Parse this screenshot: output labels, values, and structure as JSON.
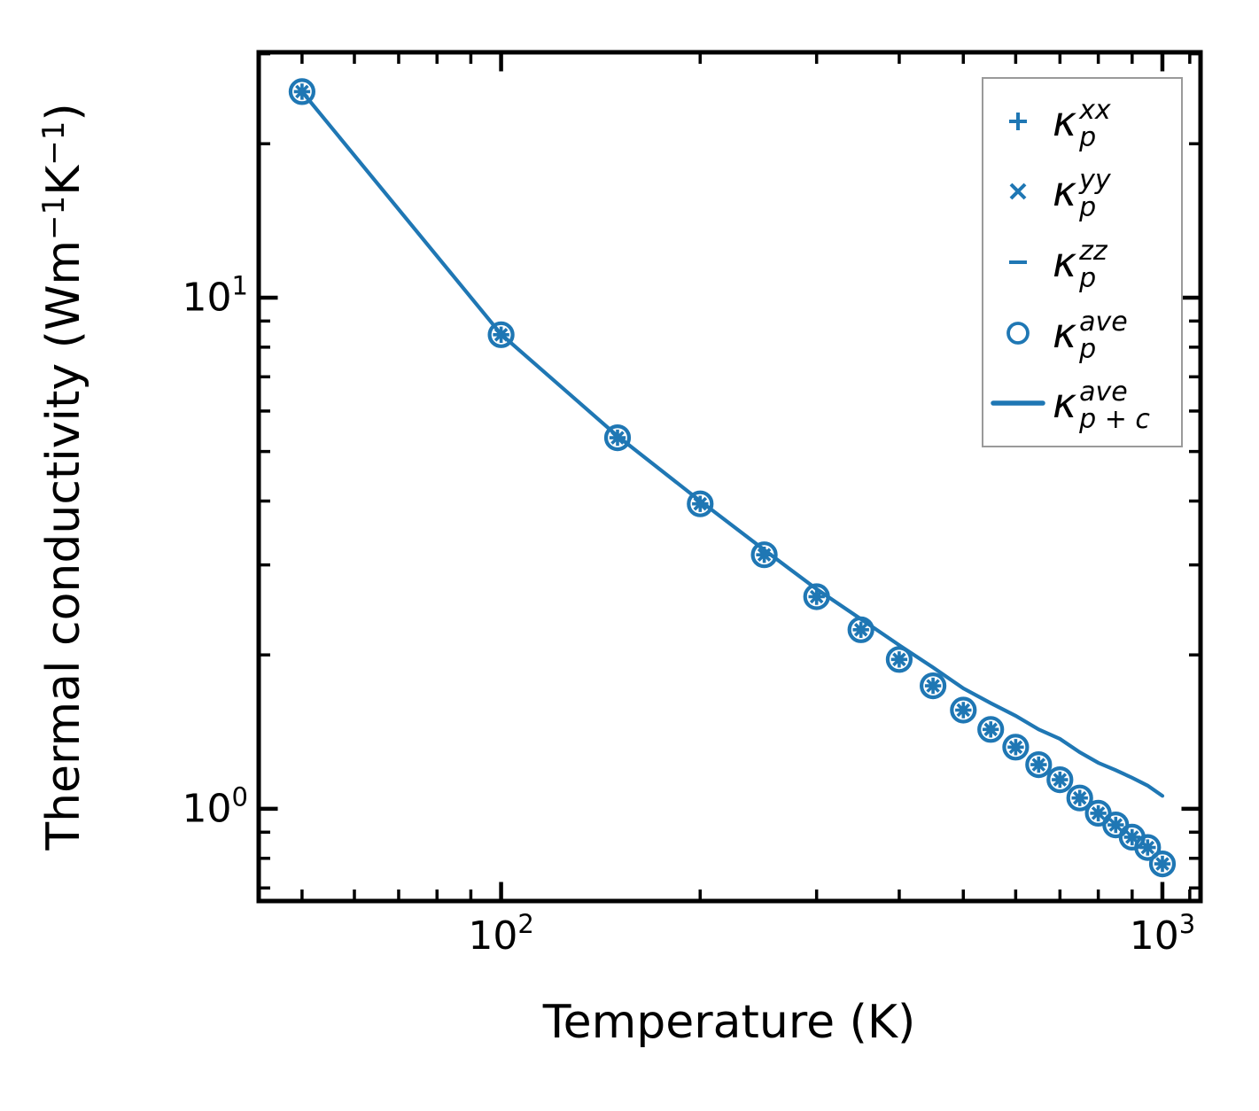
{
  "figure": {
    "background": "#ffffff",
    "accent_color": "#1f77b4",
    "axes_color": "#000000",
    "legend_border_color": "#9a9a9a"
  },
  "chart_data": {
    "type": "line",
    "x_scale": "log",
    "y_scale": "log",
    "title": "",
    "xlabel": "Temperature (K)",
    "ylabel": "Thermal conductivity (Wm−1K−1)",
    "ylabel_parts": [
      [
        "text",
        "Thermal conductivity (Wm"
      ],
      [
        "sup",
        "−1"
      ],
      [
        "text",
        "K"
      ],
      [
        "sup",
        "−1"
      ],
      [
        "text",
        ")"
      ]
    ],
    "xlim": [
      43,
      1142
    ],
    "ylim": [
      0.66,
      30.2
    ],
    "grid": false,
    "legend_position": "upper right",
    "x_major_ticks": [
      100,
      1000
    ],
    "x_minor_ticks": [
      50,
      60,
      70,
      80,
      90,
      200,
      300,
      400,
      500,
      600,
      700,
      800,
      900,
      1100
    ],
    "y_major_ticks": [
      1,
      10
    ],
    "y_minor_ticks": [
      0.7,
      0.8,
      0.9,
      2,
      3,
      4,
      5,
      6,
      7,
      8,
      9,
      20,
      30
    ],
    "x_tick_labels": [
      {
        "base": "10",
        "exp": "2",
        "value": 100
      },
      {
        "base": "10",
        "exp": "3",
        "value": 1000
      }
    ],
    "y_tick_labels": [
      {
        "base": "10",
        "exp": "0",
        "value": 1
      },
      {
        "base": "10",
        "exp": "1",
        "value": 10
      }
    ],
    "temperatures": [
      50,
      100,
      150,
      200,
      250,
      300,
      350,
      400,
      450,
      500,
      550,
      600,
      650,
      700,
      750,
      800,
      850,
      900,
      950,
      1000
    ],
    "series": [
      {
        "name": "κ_p^xx",
        "marker": "plus",
        "type": "scatter",
        "values": [
          25.3,
          8.46,
          5.32,
          3.95,
          3.14,
          2.6,
          2.24,
          1.96,
          1.74,
          1.56,
          1.43,
          1.32,
          1.22,
          1.14,
          1.05,
          0.98,
          0.93,
          0.88,
          0.84,
          0.78
        ]
      },
      {
        "name": "κ_p^yy",
        "marker": "cross",
        "type": "scatter",
        "values": [
          25.3,
          8.46,
          5.32,
          3.95,
          3.14,
          2.6,
          2.24,
          1.96,
          1.74,
          1.56,
          1.43,
          1.32,
          1.22,
          1.14,
          1.05,
          0.98,
          0.93,
          0.88,
          0.84,
          0.78
        ]
      },
      {
        "name": "κ_p^zz",
        "marker": "dash",
        "type": "scatter",
        "values": [
          25.3,
          8.46,
          5.32,
          3.95,
          3.14,
          2.6,
          2.24,
          1.96,
          1.74,
          1.56,
          1.43,
          1.32,
          1.22,
          1.14,
          1.05,
          0.98,
          0.93,
          0.88,
          0.84,
          0.78
        ]
      },
      {
        "name": "κ_p^ave",
        "marker": "circle",
        "type": "scatter",
        "values": [
          25.3,
          8.46,
          5.32,
          3.95,
          3.14,
          2.6,
          2.24,
          1.96,
          1.74,
          1.56,
          1.43,
          1.32,
          1.22,
          1.14,
          1.05,
          0.98,
          0.93,
          0.88,
          0.84,
          0.78
        ]
      },
      {
        "name": "κ_p+c^ave",
        "marker": "line",
        "type": "line",
        "values": [
          25.3,
          8.48,
          5.36,
          4.0,
          3.21,
          2.69,
          2.35,
          2.09,
          1.89,
          1.72,
          1.61,
          1.52,
          1.43,
          1.37,
          1.29,
          1.23,
          1.19,
          1.15,
          1.11,
          1.06
        ]
      }
    ]
  },
  "legend": {
    "items": [
      {
        "marker": "plus",
        "marker_name": "plus-marker-icon",
        "base": "κ",
        "sup": "xx",
        "sub": "p"
      },
      {
        "marker": "cross",
        "marker_name": "cross-marker-icon",
        "base": "κ",
        "sup": "yy",
        "sub": "p"
      },
      {
        "marker": "dash",
        "marker_name": "dash-marker-icon",
        "base": "κ",
        "sup": "zz",
        "sub": "p"
      },
      {
        "marker": "circle",
        "marker_name": "circle-marker-icon",
        "base": "κ",
        "sup": "ave",
        "sub": "p"
      },
      {
        "marker": "line",
        "marker_name": "line-marker-icon",
        "base": "κ",
        "sup": "ave",
        "sub": "p + c"
      }
    ]
  }
}
